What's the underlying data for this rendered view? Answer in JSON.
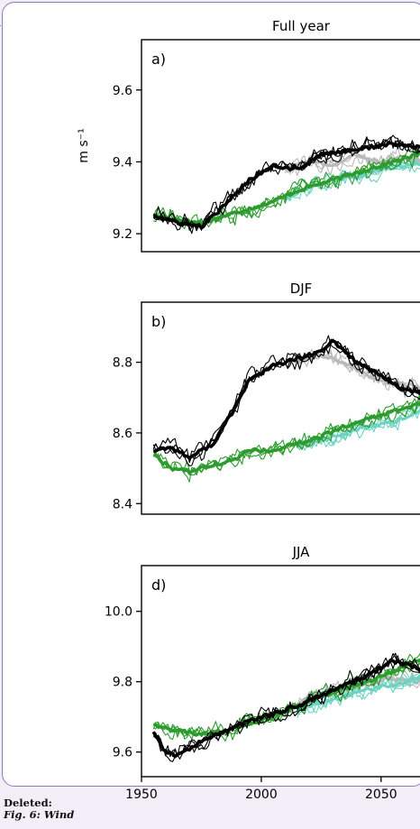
{
  "comment": {
    "label": "Deleted:",
    "text": "Fig. 6: Wind"
  },
  "colors": {
    "black": "#000000",
    "gray": "#b9b9b9",
    "green": "#2e9b2e",
    "teal": "#6cd3c0",
    "border": "#8f7ab8"
  },
  "chart_data": [
    {
      "type": "line",
      "title": "Full year",
      "panel_label": "a)",
      "ylabel": "m s⁻¹",
      "ylim": [
        9.15,
        9.74
      ],
      "xlim": [
        1950,
        2070
      ],
      "yticks": [
        {
          "value": 9.2,
          "label": "9.2"
        },
        {
          "value": 9.4,
          "label": "9.4"
        },
        {
          "value": 9.6,
          "label": "9.6"
        }
      ],
      "series": [
        {
          "color": "black",
          "thick": true,
          "x": [
            1955,
            1965,
            1975,
            1985,
            1995,
            2005,
            2015,
            2025,
            2035,
            2045,
            2055,
            2065,
            2070
          ],
          "y": [
            9.25,
            9.23,
            9.22,
            9.28,
            9.35,
            9.39,
            9.38,
            9.42,
            9.43,
            9.44,
            9.45,
            9.44,
            9.44
          ]
        },
        {
          "color": "gray",
          "thick": true,
          "x": [
            2010,
            2020,
            2030,
            2040,
            2050,
            2060,
            2070
          ],
          "y": [
            9.38,
            9.4,
            9.39,
            9.42,
            9.4,
            9.41,
            9.4
          ]
        },
        {
          "color": "green",
          "thick": true,
          "x": [
            1955,
            1965,
            1975,
            1985,
            1995,
            2005,
            2015,
            2025,
            2035,
            2045,
            2055,
            2065,
            2070
          ],
          "y": [
            9.25,
            9.24,
            9.23,
            9.25,
            9.27,
            9.29,
            9.32,
            9.34,
            9.36,
            9.38,
            9.4,
            9.42,
            9.43
          ]
        },
        {
          "color": "teal",
          "thick": true,
          "x": [
            2010,
            2020,
            2030,
            2040,
            2050,
            2060,
            2070
          ],
          "y": [
            9.3,
            9.33,
            9.35,
            9.36,
            9.38,
            9.39,
            9.4
          ]
        }
      ]
    },
    {
      "type": "line",
      "title": "DJF",
      "panel_label": "b)",
      "ylabel": "",
      "ylim": [
        8.37,
        8.97
      ],
      "xlim": [
        1950,
        2070
      ],
      "yticks": [
        {
          "value": 8.4,
          "label": "8.4"
        },
        {
          "value": 8.6,
          "label": "8.6"
        },
        {
          "value": 8.8,
          "label": "8.8"
        }
      ],
      "series": [
        {
          "color": "black",
          "thick": true,
          "x": [
            1955,
            1962,
            1970,
            1980,
            1988,
            1995,
            2005,
            2015,
            2025,
            2030,
            2040,
            2050,
            2060,
            2070
          ],
          "y": [
            8.55,
            8.56,
            8.53,
            8.57,
            8.66,
            8.75,
            8.79,
            8.81,
            8.83,
            8.86,
            8.8,
            8.76,
            8.72,
            8.71
          ]
        },
        {
          "color": "gray",
          "thick": true,
          "x": [
            2015,
            2025,
            2035,
            2045,
            2055,
            2065,
            2070
          ],
          "y": [
            8.8,
            8.82,
            8.8,
            8.76,
            8.74,
            8.73,
            8.72
          ]
        },
        {
          "color": "green",
          "thick": true,
          "x": [
            1955,
            1962,
            1970,
            1980,
            1988,
            1995,
            2005,
            2015,
            2025,
            2035,
            2045,
            2055,
            2065,
            2070
          ],
          "y": [
            8.54,
            8.5,
            8.49,
            8.51,
            8.52,
            8.55,
            8.55,
            8.57,
            8.59,
            8.62,
            8.64,
            8.66,
            8.68,
            8.71
          ]
        },
        {
          "color": "teal",
          "thick": true,
          "x": [
            2015,
            2025,
            2035,
            2045,
            2055,
            2065,
            2070
          ],
          "y": [
            8.56,
            8.58,
            8.6,
            8.62,
            8.63,
            8.66,
            8.68
          ]
        }
      ]
    },
    {
      "type": "line",
      "title": "JJA",
      "panel_label": "d)",
      "ylabel": "",
      "ylim": [
        9.53,
        10.13
      ],
      "xlim": [
        1950,
        2070
      ],
      "xlabel_ticks": [
        {
          "value": 1950,
          "label": "1950"
        },
        {
          "value": 2000,
          "label": "2000"
        },
        {
          "value": 2050,
          "label": "2050"
        }
      ],
      "yticks": [
        {
          "value": 9.6,
          "label": "9.6"
        },
        {
          "value": 9.8,
          "label": "9.8"
        },
        {
          "value": 10.0,
          "label": "10.0"
        }
      ],
      "series": [
        {
          "color": "black",
          "thick": true,
          "x": [
            1955,
            1960,
            1965,
            1975,
            1985,
            1995,
            2005,
            2015,
            2025,
            2035,
            2045,
            2055,
            2065,
            2070
          ],
          "y": [
            9.66,
            9.6,
            9.59,
            9.63,
            9.66,
            9.69,
            9.71,
            9.73,
            9.76,
            9.79,
            9.82,
            9.86,
            9.84,
            9.83
          ]
        },
        {
          "color": "gray",
          "thick": true,
          "x": [
            2015,
            2025,
            2035,
            2045,
            2055,
            2065,
            2070
          ],
          "y": [
            9.74,
            9.77,
            9.78,
            9.8,
            9.81,
            9.8,
            9.82
          ]
        },
        {
          "color": "green",
          "thick": true,
          "x": [
            1955,
            1965,
            1975,
            1985,
            1995,
            2005,
            2015,
            2025,
            2035,
            2045,
            2055,
            2065,
            2070
          ],
          "y": [
            9.68,
            9.66,
            9.65,
            9.66,
            9.68,
            9.7,
            9.73,
            9.76,
            9.78,
            9.8,
            9.83,
            9.86,
            9.88
          ]
        },
        {
          "color": "teal",
          "thick": true,
          "x": [
            2015,
            2025,
            2035,
            2045,
            2055,
            2065,
            2070
          ],
          "y": [
            9.72,
            9.74,
            9.76,
            9.78,
            9.79,
            9.81,
            9.82
          ]
        }
      ]
    }
  ]
}
